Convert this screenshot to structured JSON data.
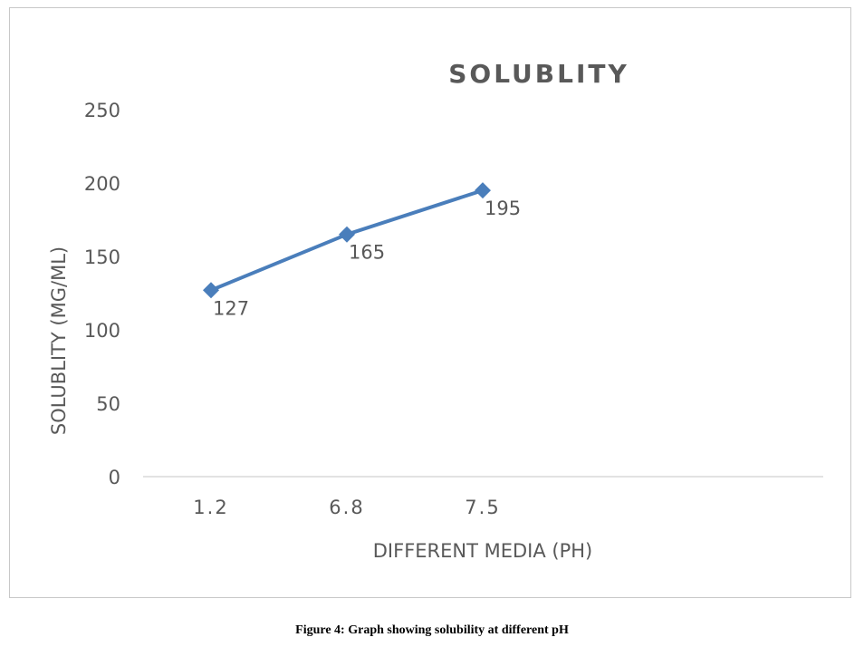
{
  "chart_data": {
    "type": "line",
    "title": "SOLUBLITY",
    "xlabel": "DIFFERENT MEDIA (PH)",
    "ylabel": "SOLUBLITY (MG/ML)",
    "categories": [
      "1.2",
      "6.8",
      "7.5"
    ],
    "series": [
      {
        "values": [
          127,
          165,
          195
        ],
        "data_labels": [
          "127",
          "165",
          "195"
        ],
        "color": "#4a7ebb",
        "marker": "diamond"
      }
    ],
    "ylim": [
      0,
      250
    ],
    "yticks": [
      0,
      50,
      100,
      150,
      200,
      250
    ],
    "grid": false,
    "legend": "none"
  },
  "caption": "Figure 4: Graph showing solubility at different pH"
}
